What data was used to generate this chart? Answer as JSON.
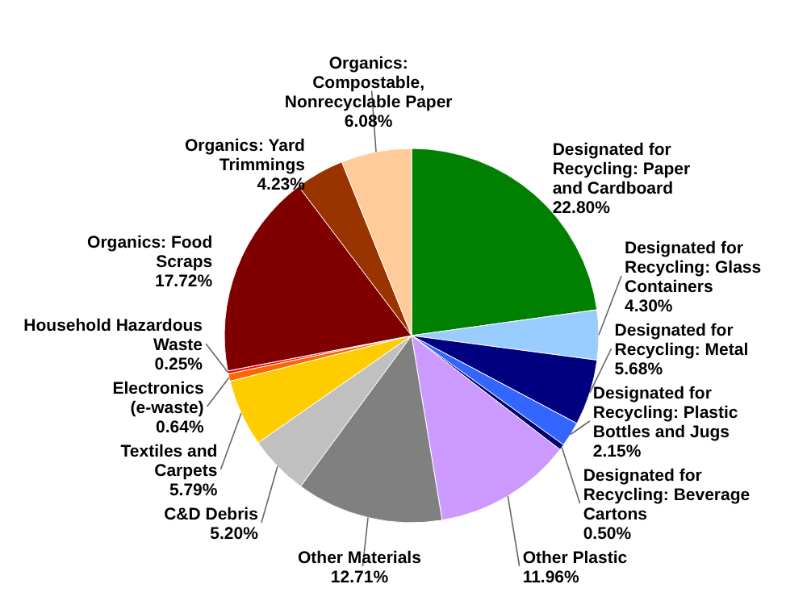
{
  "chart_data": {
    "type": "pie",
    "categories": [
      "Designated for Recycling: Paper and Cardboard",
      "Designated for Recycling: Glass Containers",
      "Designated for Recycling: Metal",
      "Designated for Recycling: Plastic Bottles and Jugs",
      "Designated for Recycling: Beverage Cartons",
      "Other Plastic",
      "Other Materials",
      "C&D Debris",
      "Textiles and Carpets",
      "Electronics (e-waste)",
      "Household Hazardous Waste",
      "Organics: Food Scraps",
      "Organics: Yard Trimmings",
      "Organics: Compostable, Nonrecyclable Paper"
    ],
    "values": [
      22.8,
      4.3,
      5.68,
      2.15,
      0.5,
      11.96,
      12.71,
      5.2,
      5.79,
      0.64,
      0.25,
      17.72,
      4.23,
      6.08
    ],
    "value_labels": [
      "22.80%",
      "4.30%",
      "5.68%",
      "2.15%",
      "0.50%",
      "11.96%",
      "12.71%",
      "5.20%",
      "5.79%",
      "0.64%",
      "0.25%",
      "17.72%",
      "4.23%",
      "6.08%"
    ],
    "colors": [
      "#008000",
      "#99ccff",
      "#000080",
      "#3366ff",
      "#000066",
      "#cc99ff",
      "#808080",
      "#c0c0c0",
      "#ffcc00",
      "#ff6600",
      "#ff0000",
      "#800000",
      "#993300",
      "#ffcc99"
    ]
  }
}
